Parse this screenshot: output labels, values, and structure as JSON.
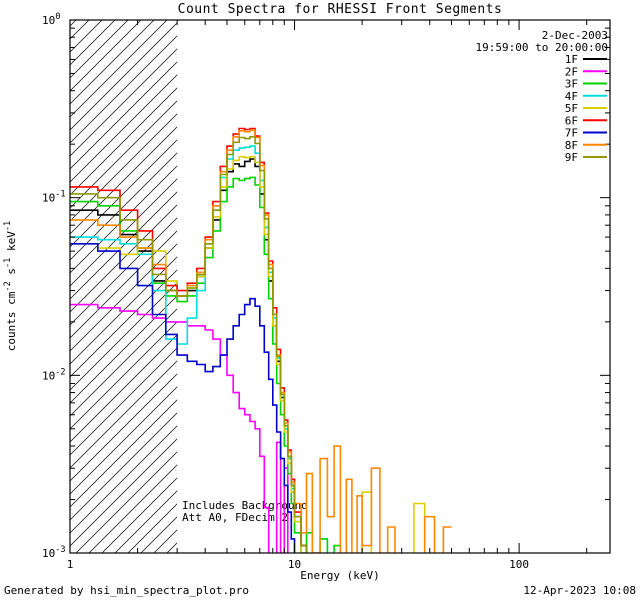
{
  "annotations": {
    "date": "2-Dec-2003",
    "time_range": "19:59:00 to 20:00:00",
    "note1": "Includes Background",
    "note2": "Att A0, FDecim 2"
  },
  "footer": {
    "left": "Generated by hsi_min_spectra_plot.pro",
    "right": "12-Apr-2023 10:08"
  },
  "colors": {
    "annotation": "#00008b",
    "axis": "#000000",
    "background": "#ffffff"
  },
  "chart_data": {
    "type": "line",
    "subtype": "step-histogram-log-log",
    "title": "Count Spectra for RHESSI Front Segments",
    "xlabel": "Energy (keV)",
    "ylabel": "counts cm^-2 s^-1 keV^-1",
    "xscale": "log",
    "yscale": "log",
    "xlim": [
      1,
      254
    ],
    "ylim": [
      0.001,
      1
    ],
    "grid": false,
    "legend_position": "top-right",
    "hatched_region_kev": [
      1,
      3
    ],
    "x_ticks": [
      {
        "value": 1,
        "label": "1"
      },
      {
        "value": 10,
        "label": "10"
      },
      {
        "value": 100,
        "label": "100"
      }
    ],
    "y_ticks": [
      {
        "value": 1,
        "label": "10^0"
      },
      {
        "value": 0.1,
        "label": "10^-1"
      },
      {
        "value": 0.01,
        "label": "10^-2"
      },
      {
        "value": 0.001,
        "label": "10^-3"
      }
    ],
    "bin_edges_kev": [
      1,
      1.33,
      1.67,
      2,
      2.33,
      2.67,
      3,
      3.33,
      3.67,
      4,
      4.33,
      4.67,
      5,
      5.33,
      5.67,
      6,
      6.33,
      6.67,
      7,
      7.33,
      7.67,
      8,
      8.33,
      8.67,
      9,
      9.33,
      9.67,
      10,
      10.7,
      11.3,
      12,
      13,
      14,
      15,
      16,
      17,
      18,
      19,
      20,
      22,
      24,
      26,
      28,
      30,
      34,
      38,
      42,
      46,
      50
    ],
    "series": [
      {
        "name": "1F",
        "color": "#000000",
        "values": [
          0.085,
          0.08,
          0.062,
          0.05,
          0.034,
          0.03,
          0.028,
          0.03,
          0.036,
          0.052,
          0.075,
          0.11,
          0.14,
          0.155,
          0.15,
          0.16,
          0.165,
          0.15,
          0.105,
          0.058,
          0.034,
          0.019,
          0.012,
          0.0075,
          0.005,
          0.0034,
          0.0024,
          0.0016,
          0.0011,
          0.0008,
          0.0006,
          0.0005,
          0.0005,
          0.0005,
          0.0005,
          0.0005,
          0.0005,
          0.0005,
          0.0005,
          0.0005,
          0.0005,
          0.0005,
          0.0005,
          0.0005,
          0.0005,
          0.0005,
          0.0005,
          0.0005
        ]
      },
      {
        "name": "2F",
        "color": "#ff00ff",
        "values": [
          0.025,
          0.024,
          0.023,
          0.022,
          0.021,
          0.02,
          0.02,
          0.019,
          0.019,
          0.018,
          0.016,
          0.013,
          0.01,
          0.008,
          0.0065,
          0.006,
          0.0055,
          0.005,
          0.0035,
          0.0018,
          0.0009,
          0.0005,
          0.0042,
          0.0005,
          0.003,
          0.0005,
          0.0005,
          0.0005,
          0.0005,
          0.0005,
          0.0005,
          0.0005,
          0.0005,
          0.0005,
          0.0005,
          0.0005,
          0.0005,
          0.0005,
          0.0005,
          0.0005,
          0.0005,
          0.0005,
          0.0005,
          0.0005,
          0.0005,
          0.0005,
          0.0005,
          0.0005
        ]
      },
      {
        "name": "3F",
        "color": "#00d400",
        "values": [
          0.095,
          0.09,
          0.065,
          0.052,
          0.033,
          0.028,
          0.026,
          0.028,
          0.033,
          0.046,
          0.065,
          0.095,
          0.115,
          0.128,
          0.125,
          0.128,
          0.13,
          0.118,
          0.088,
          0.048,
          0.027,
          0.015,
          0.009,
          0.006,
          0.004,
          0.0028,
          0.0019,
          0.0013,
          0.0009,
          0.0013,
          0.0007,
          0.0012,
          0.0005,
          0.0011,
          0.0005,
          0.0005,
          0.0005,
          0.0005,
          0.0005,
          0.0005,
          0.0005,
          0.0005,
          0.0005,
          0.0005,
          0.0005,
          0.0005,
          0.0005,
          0.0005
        ]
      },
      {
        "name": "4F",
        "color": "#00dede",
        "values": [
          0.06,
          0.058,
          0.055,
          0.048,
          0.03,
          0.016,
          0.015,
          0.021,
          0.03,
          0.055,
          0.085,
          0.13,
          0.165,
          0.185,
          0.19,
          0.192,
          0.195,
          0.178,
          0.125,
          0.068,
          0.038,
          0.021,
          0.0125,
          0.0078,
          0.005,
          0.0034,
          0.0023,
          0.0015,
          0.001,
          0.0007,
          0.0005,
          0.0005,
          0.0005,
          0.0005,
          0.0005,
          0.0005,
          0.0005,
          0.0005,
          0.0005,
          0.0005,
          0.0005,
          0.0005,
          0.0005,
          0.0005,
          0.0005,
          0.0005,
          0.0005,
          0.0005
        ]
      },
      {
        "name": "5F",
        "color": "#d9cf00",
        "values": [
          0.055,
          0.052,
          0.048,
          0.052,
          0.05,
          0.034,
          0.028,
          0.031,
          0.036,
          0.052,
          0.078,
          0.115,
          0.145,
          0.162,
          0.17,
          0.168,
          0.17,
          0.158,
          0.115,
          0.062,
          0.036,
          0.019,
          0.0115,
          0.0072,
          0.0048,
          0.0032,
          0.0022,
          0.0015,
          0.001,
          0.0007,
          0.0005,
          0.0005,
          0.0005,
          0.0005,
          0.0005,
          0.0005,
          0.0005,
          0.0005,
          0.0022,
          0.0005,
          0.0005,
          0.0005,
          0.0005,
          0.0005,
          0.0019,
          0.0005,
          0.0005,
          0.0005
        ]
      },
      {
        "name": "6F",
        "color": "#ff0000",
        "values": [
          0.115,
          0.11,
          0.085,
          0.065,
          0.04,
          0.032,
          0.03,
          0.033,
          0.04,
          0.06,
          0.095,
          0.15,
          0.195,
          0.228,
          0.245,
          0.242,
          0.245,
          0.222,
          0.158,
          0.082,
          0.044,
          0.024,
          0.014,
          0.0085,
          0.0056,
          0.0038,
          0.0026,
          0.0017,
          0.0011,
          0.0008,
          0.0005,
          0.0005,
          0.0005,
          0.0005,
          0.0005,
          0.0005,
          0.0005,
          0.0005,
          0.0005,
          0.0005,
          0.0005,
          0.0005,
          0.0005,
          0.0005,
          0.0005,
          0.0005,
          0.0005,
          0.0005
        ]
      },
      {
        "name": "7F",
        "color": "#0000cc",
        "values": [
          0.055,
          0.05,
          0.04,
          0.032,
          0.022,
          0.017,
          0.013,
          0.012,
          0.0115,
          0.0105,
          0.0112,
          0.013,
          0.016,
          0.019,
          0.022,
          0.025,
          0.027,
          0.0245,
          0.019,
          0.0135,
          0.0095,
          0.0068,
          0.0048,
          0.0034,
          0.0024,
          0.0017,
          0.0012,
          0.0009,
          0.0007,
          0.0005,
          0.0005,
          0.0005,
          0.0005,
          0.0005,
          0.0005,
          0.0005,
          0.0005,
          0.0005,
          0.0005,
          0.0005,
          0.0005,
          0.0005,
          0.0005,
          0.0005,
          0.0005,
          0.0005,
          0.0005,
          0.0005
        ]
      },
      {
        "name": "8F",
        "color": "#ff8800",
        "values": [
          0.075,
          0.07,
          0.06,
          0.052,
          0.042,
          0.03,
          0.028,
          0.032,
          0.038,
          0.058,
          0.09,
          0.14,
          0.185,
          0.22,
          0.238,
          0.235,
          0.24,
          0.218,
          0.152,
          0.08,
          0.042,
          0.022,
          0.013,
          0.008,
          0.0054,
          0.0037,
          0.0025,
          0.0019,
          0.0013,
          0.0028,
          0.001,
          0.0034,
          0.0016,
          0.004,
          0.0009,
          0.0026,
          0.0007,
          0.0021,
          0.0011,
          0.003,
          0.0007,
          0.0014,
          0.0005,
          0.0005,
          0.0005,
          0.0016,
          0.0005,
          0.0014
        ]
      },
      {
        "name": "9F",
        "color": "#8f9900",
        "values": [
          0.105,
          0.1,
          0.075,
          0.058,
          0.037,
          0.03,
          0.028,
          0.031,
          0.037,
          0.055,
          0.085,
          0.135,
          0.175,
          0.205,
          0.218,
          0.215,
          0.22,
          0.202,
          0.142,
          0.076,
          0.04,
          0.022,
          0.0128,
          0.0078,
          0.0052,
          0.0035,
          0.0024,
          0.0016,
          0.0011,
          0.0007,
          0.0005,
          0.0005,
          0.0005,
          0.0005,
          0.0005,
          0.0005,
          0.0005,
          0.0005,
          0.0005,
          0.0005,
          0.0005,
          0.0005,
          0.0005,
          0.0005,
          0.0005,
          0.0005,
          0.0005,
          0.0005
        ]
      }
    ]
  }
}
